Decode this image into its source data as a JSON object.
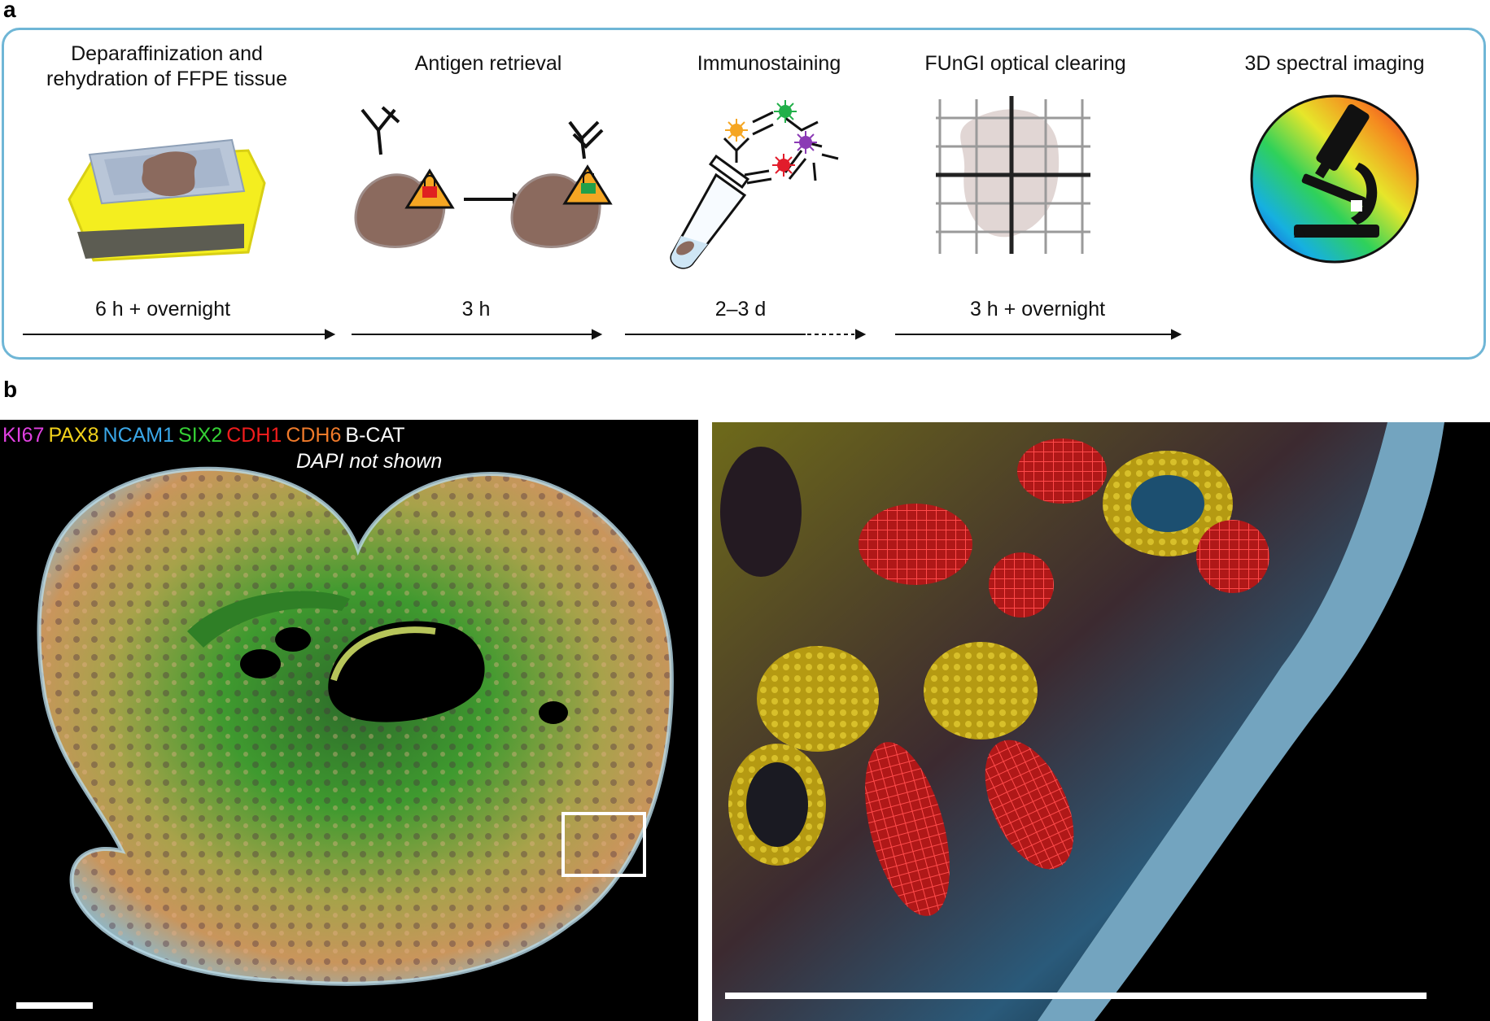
{
  "panel_a": {
    "letter": "a",
    "steps": [
      {
        "title_line1": "Deparaffinization and",
        "title_line2": "rehydration of FFPE tissue"
      },
      {
        "title_line1": "Antigen retrieval",
        "title_line2": ""
      },
      {
        "title_line1": "Immunostaining",
        "title_line2": ""
      },
      {
        "title_line1": "FUnGI optical clearing",
        "title_line2": ""
      },
      {
        "title_line1": "3D spectral imaging",
        "title_line2": ""
      }
    ],
    "durations": [
      "6 h + overnight",
      "3 h",
      "2–3 d",
      "3 h + overnight"
    ],
    "colors": {
      "border": "#6fb6d6",
      "tissue": "#8b6a5e",
      "slide_yellow": "#f4ee1f",
      "warning_orange": "#f5a623"
    }
  },
  "panel_b": {
    "letter": "b",
    "markers": [
      {
        "name": "KI67",
        "color": "#e040e0"
      },
      {
        "name": "PAX8",
        "color": "#f2d21b"
      },
      {
        "name": "NCAM1",
        "color": "#3aa7e8"
      },
      {
        "name": "SIX2",
        "color": "#35d035"
      },
      {
        "name": "CDH1",
        "color": "#f01c1c"
      },
      {
        "name": "CDH6",
        "color": "#f07a2a"
      },
      {
        "name": "B-CAT",
        "color": "#ffffff"
      }
    ],
    "note": "DAPI not shown"
  }
}
